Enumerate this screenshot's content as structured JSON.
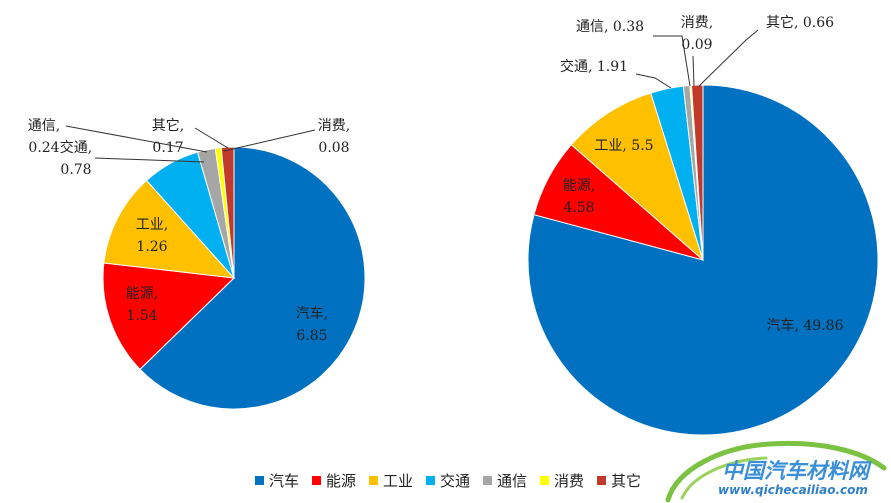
{
  "colors": {
    "汽车": "#0070C0",
    "能源": "#FF0000",
    "工业": "#FFC000",
    "交通": "#00B0F0",
    "通信": "#A6A6A6",
    "消费": "#FFFF00",
    "其它": "#C0392B"
  },
  "chart_data": [
    {
      "type": "pie",
      "categories": [
        "汽车",
        "能源",
        "工业",
        "交通",
        "通信",
        "消费",
        "其它"
      ],
      "values": [
        6.85,
        1.54,
        1.26,
        0.78,
        0.24,
        0.08,
        0.17
      ],
      "labels": {
        "汽车": [
          "汽车,",
          "6.85"
        ],
        "能源": [
          "能源,",
          "1.54"
        ],
        "工业": [
          "工业,",
          "1.26"
        ],
        "交通": [
          "交通,",
          "0.78"
        ],
        "通信": [
          "通信,",
          "0.24"
        ],
        "消费": [
          "消费,",
          "0.08"
        ],
        "其它": [
          "其它,",
          "0.17"
        ]
      }
    },
    {
      "type": "pie",
      "categories": [
        "汽车",
        "能源",
        "工业",
        "交通",
        "通信",
        "消费",
        "其它"
      ],
      "values": [
        49.86,
        4.58,
        5.5,
        1.91,
        0.38,
        0.09,
        0.66
      ],
      "labels": {
        "汽车": [
          "汽车, 49.86"
        ],
        "能源": [
          "能源,",
          "4.58"
        ],
        "工业": [
          "工业, 5.5"
        ],
        "交通": [
          "交通, 1.91"
        ],
        "通信": [
          "通信, 0.38"
        ],
        "消费": [
          "消费,",
          "0.09"
        ],
        "其它": [
          "其它, 0.66"
        ]
      }
    }
  ],
  "legend": [
    "汽车",
    "能源",
    "工业",
    "交通",
    "通信",
    "消费",
    "其它"
  ],
  "watermark": {
    "name": "中国汽车材料网",
    "url": "www.qichecailiao.com"
  }
}
